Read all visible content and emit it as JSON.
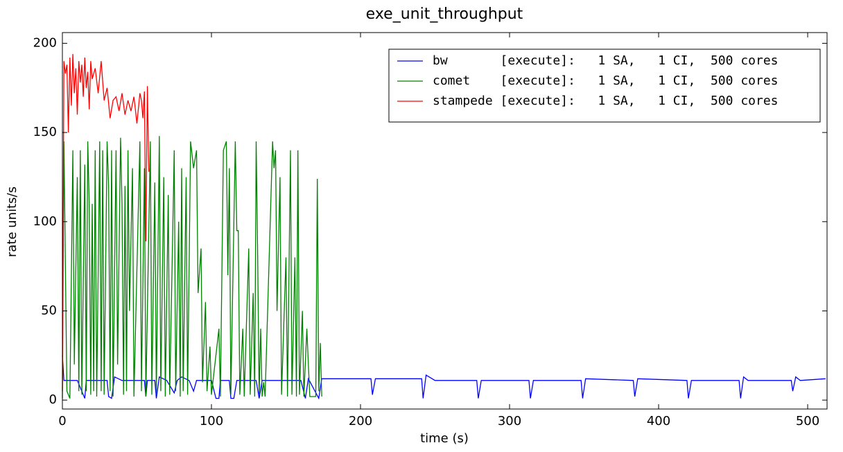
{
  "chart_data": {
    "type": "line",
    "title": "exe_unit_throughput",
    "xlabel": "time (s)",
    "ylabel": "rate units/s",
    "xlim": [
      0,
      513
    ],
    "ylim": [
      -5,
      206
    ],
    "xticks": [
      0,
      100,
      200,
      300,
      400,
      500
    ],
    "yticks": [
      0,
      50,
      100,
      150,
      200
    ],
    "grid": false,
    "legend": "upper right",
    "series": [
      {
        "name": "bw       [execute]:   1 SA,   1 CI,  500 cores",
        "color": "#0000ff",
        "x": [
          0,
          1,
          10,
          15,
          16,
          30,
          31,
          33,
          35,
          40,
          55,
          56,
          57,
          62,
          63,
          65,
          70,
          75,
          77,
          80,
          85,
          88,
          90,
          100,
          103,
          105,
          106,
          112,
          113,
          115,
          117,
          130,
          132,
          134,
          160,
          163,
          165,
          172,
          174,
          207,
          208,
          210,
          241,
          242,
          244,
          250,
          278,
          279,
          281,
          313,
          314,
          316,
          348,
          349,
          351,
          383,
          384,
          386,
          419,
          420,
          422,
          454,
          455,
          457,
          460,
          489,
          490,
          492,
          495,
          512
        ],
        "values": [
          25,
          11,
          11,
          1,
          11,
          11,
          2,
          1,
          13,
          11,
          11,
          2,
          11,
          11,
          1,
          13,
          11,
          4,
          11,
          13,
          11,
          5,
          11,
          11,
          1,
          1,
          11,
          11,
          1,
          1,
          11,
          11,
          1,
          11,
          11,
          1,
          12,
          1,
          12,
          12,
          3,
          12,
          12,
          1,
          14,
          11,
          11,
          1,
          11,
          11,
          1,
          11,
          11,
          1,
          12,
          11,
          2,
          12,
          11,
          1,
          11,
          11,
          1,
          13,
          11,
          11,
          5,
          13,
          11,
          12
        ]
      },
      {
        "name": "comet    [execute]:   1 SA,   1 CI,  500 cores",
        "color": "#008000",
        "x": [
          0,
          1,
          3,
          5,
          7,
          8,
          10,
          11,
          12,
          13,
          15,
          16,
          17,
          18,
          19,
          20,
          21,
          22,
          23,
          25,
          26,
          27,
          28,
          30,
          31,
          32,
          33,
          34,
          36,
          37,
          39,
          40,
          41,
          42,
          43,
          44,
          45,
          47,
          48,
          52,
          53,
          55,
          56,
          59,
          60,
          62,
          63,
          65,
          66,
          68,
          69,
          71,
          72,
          75,
          76,
          78,
          79,
          80,
          81,
          83,
          84,
          86,
          88,
          90,
          91,
          93,
          94,
          96,
          97,
          99,
          100,
          105,
          106,
          108,
          110,
          111,
          112,
          113,
          116,
          117,
          118,
          119,
          121,
          122,
          125,
          126,
          128,
          129,
          130,
          131,
          132,
          133,
          134,
          135,
          136,
          141,
          142,
          143,
          144,
          146,
          147,
          150,
          151,
          153,
          154,
          156,
          157,
          158,
          159,
          161,
          162,
          164,
          165,
          166,
          170,
          171,
          172,
          173,
          174
        ],
        "values": [
          1,
          145,
          5,
          1,
          140,
          20,
          125,
          5,
          140,
          3,
          132,
          5,
          145,
          110,
          3,
          110,
          5,
          140,
          2,
          145,
          5,
          140,
          3,
          145,
          120,
          5,
          140,
          2,
          140,
          20,
          147,
          110,
          3,
          120,
          5,
          140,
          50,
          130,
          2,
          145,
          5,
          130,
          2,
          145,
          3,
          122,
          3,
          148,
          5,
          125,
          2,
          115,
          3,
          140,
          5,
          100,
          2,
          130,
          5,
          125,
          3,
          145,
          130,
          140,
          60,
          85,
          10,
          55,
          5,
          30,
          3,
          40,
          2,
          140,
          145,
          70,
          130,
          3,
          145,
          95,
          95,
          3,
          40,
          2,
          85,
          3,
          60,
          2,
          145,
          80,
          3,
          40,
          2,
          10,
          2,
          145,
          130,
          140,
          50,
          125,
          3,
          80,
          2,
          140,
          3,
          80,
          2,
          140,
          3,
          50,
          2,
          40,
          20,
          2,
          2,
          124,
          5,
          32,
          2
        ]
      },
      {
        "name": "stampede [execute]:   1 SA,   1 CI,  500 cores",
        "color": "#ff0000",
        "x": [
          0,
          1,
          2,
          3,
          4,
          5,
          6,
          7,
          8,
          9,
          10,
          11,
          12,
          13,
          14,
          15,
          16,
          17,
          18,
          19,
          20,
          22,
          24,
          26,
          28,
          30,
          32,
          34,
          36,
          38,
          40,
          42,
          44,
          46,
          48,
          50,
          52,
          53,
          54,
          55,
          56,
          57,
          58
        ],
        "values": [
          5,
          190,
          183,
          188,
          150,
          192,
          165,
          194,
          172,
          186,
          160,
          190,
          178,
          188,
          170,
          192,
          175,
          184,
          163,
          190,
          180,
          186,
          172,
          190,
          168,
          175,
          158,
          168,
          170,
          162,
          172,
          160,
          168,
          162,
          170,
          155,
          172,
          168,
          158,
          173,
          89,
          176,
          128
        ]
      }
    ]
  }
}
